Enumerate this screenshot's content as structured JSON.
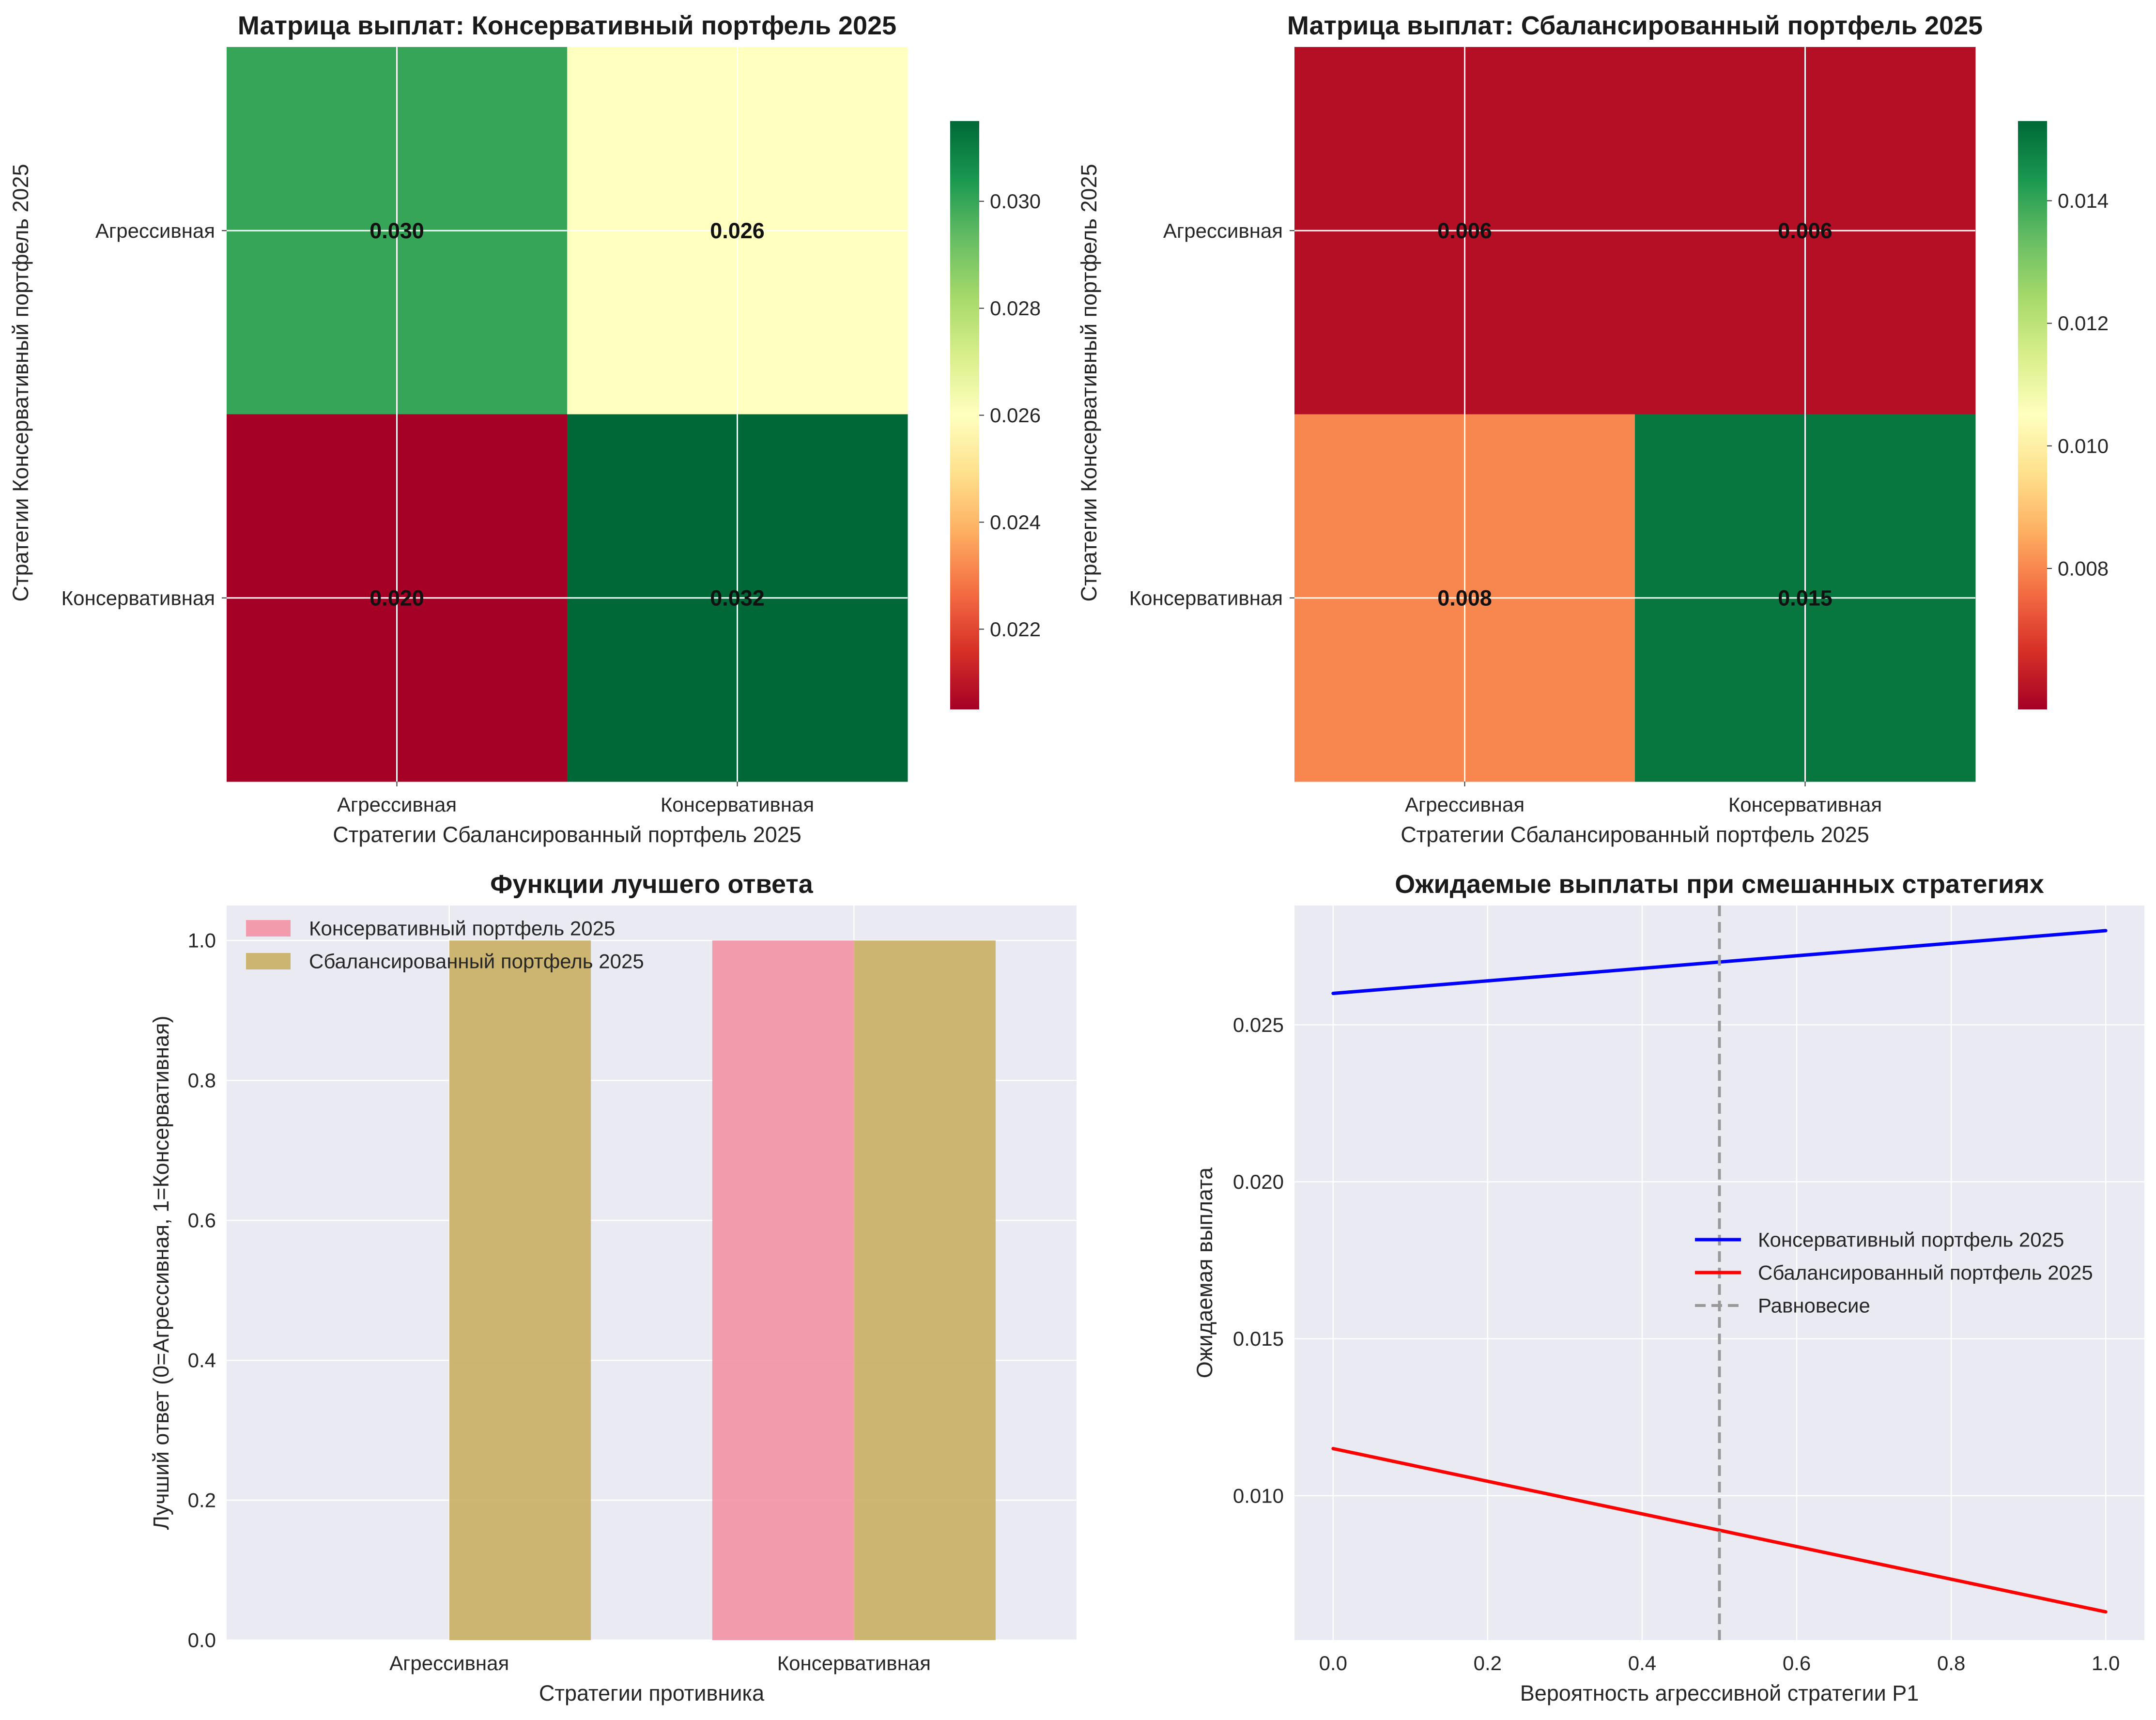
{
  "chart_data": [
    {
      "type": "heatmap",
      "title": "Матрица выплат: Консервативный портфель 2025",
      "xlabel": "Стратегии Сбалансированный портфель 2025",
      "ylabel": "Стратегии Консервативный портфель 2025",
      "x_categories": [
        "Агрессивная",
        "Консервативная"
      ],
      "y_categories": [
        "Агрессивная",
        "Консервативная"
      ],
      "values": [
        [
          0.03,
          0.026
        ],
        [
          0.02,
          0.032
        ]
      ],
      "cell_labels": [
        [
          "0.030",
          "0.026"
        ],
        [
          "0.020",
          "0.032"
        ]
      ],
      "colormap": "RdYlGn",
      "colorbar": {
        "range": [
          0.0205,
          0.0315
        ],
        "ticks": [
          "0.022",
          "0.024",
          "0.026",
          "0.028",
          "0.030"
        ]
      },
      "grid": true
    },
    {
      "type": "heatmap",
      "title": "Матрица выплат: Сбалансированный портфель 2025",
      "xlabel": "Стратегии Сбалансированный портфель 2025",
      "ylabel": "Стратегии Консервативный портфель 2025",
      "x_categories": [
        "Агрессивная",
        "Консервативная"
      ],
      "y_categories": [
        "Агрессивная",
        "Консервативная"
      ],
      "values": [
        [
          0.006,
          0.006
        ],
        [
          0.008,
          0.015
        ]
      ],
      "cell_labels": [
        [
          "0.006",
          "0.006"
        ],
        [
          "0.008",
          "0.015"
        ]
      ],
      "colormap": "RdYlGn",
      "colorbar": {
        "range": [
          0.0057,
          0.0153
        ],
        "ticks": [
          "0.008",
          "0.010",
          "0.012",
          "0.014"
        ]
      },
      "grid": true
    },
    {
      "type": "bar",
      "title": "Функции лучшего ответа",
      "xlabel": "Стратегии противника",
      "ylabel": "Лучший ответ (0=Агрессивная, 1=Консервативная)",
      "categories": [
        "Агрессивная",
        "Консервативная"
      ],
      "series": [
        {
          "name": "Консервативный портфель 2025",
          "values": [
            0,
            1
          ],
          "color": "#f197a9"
        },
        {
          "name": "Сбалансированный портфель 2025",
          "values": [
            1,
            1
          ],
          "color": "#c9b269"
        }
      ],
      "ylim": [
        0,
        1.05
      ],
      "yticks": [
        "0.0",
        "0.2",
        "0.4",
        "0.6",
        "0.8",
        "1.0"
      ],
      "legend": "top-left",
      "grid": true
    },
    {
      "type": "line",
      "title": "Ожидаемые выплаты при смешанных стратегиях",
      "xlabel": "Вероятность агрессивной стратегии P1",
      "ylabel": "Ожидаемая выплата",
      "xlim": [
        -0.05,
        1.05
      ],
      "ylim": [
        0.0054,
        0.0288
      ],
      "xticks": [
        "0.0",
        "0.2",
        "0.4",
        "0.6",
        "0.8",
        "1.0"
      ],
      "yticks": [
        "0.010",
        "0.015",
        "0.020",
        "0.025"
      ],
      "series": [
        {
          "name": "Консервативный портфель 2025",
          "x": [
            0,
            1
          ],
          "y": [
            0.026,
            0.028
          ],
          "color": "#0000ff"
        },
        {
          "name": "Сбалансированный портфель 2025",
          "x": [
            0,
            1
          ],
          "y": [
            0.0115,
            0.0063
          ],
          "color": "#ff0000"
        }
      ],
      "vline": {
        "name": "Равновесие",
        "x": 0.5,
        "color": "#999999"
      },
      "legend": "center-right",
      "grid": true
    }
  ]
}
